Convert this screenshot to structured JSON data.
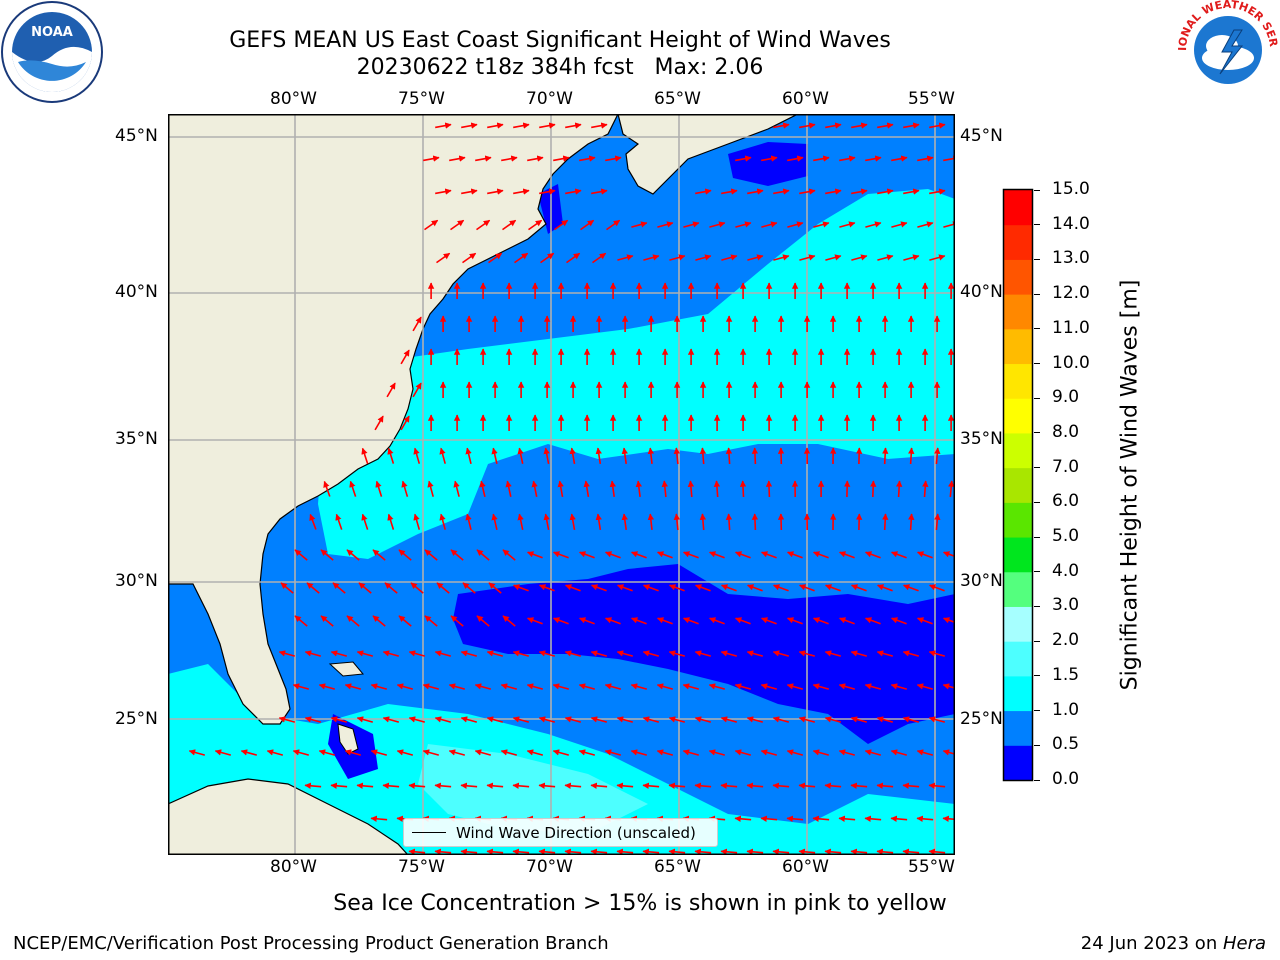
{
  "title": {
    "line1": "GEFS MEAN US East Coast Significant Height of Wind Waves",
    "line2": "20230622 t18z 384h fcst   Max: 2.06"
  },
  "map": {
    "lon_labels": [
      "80°W",
      "75°W",
      "70°W",
      "65°W",
      "60°W",
      "55°W"
    ],
    "lat_labels": [
      "45°N",
      "40°N",
      "35°N",
      "30°N",
      "25°N"
    ],
    "legend_label": "Wind Wave Direction (unscaled)",
    "colors": {
      "land": "#efeedd",
      "arrow": "#ff0000",
      "grid": "#b0b0b0"
    }
  },
  "colorbar": {
    "label": "Significant Height of Wind Waves [m]",
    "ticks": [
      "0.0",
      "0.5",
      "1.0",
      "1.5",
      "2.0",
      "3.0",
      "4.0",
      "5.0",
      "6.0",
      "7.0",
      "8.0",
      "9.0",
      "10.0",
      "11.0",
      "12.0",
      "13.0",
      "14.0",
      "15.0"
    ],
    "colors": [
      "#0000ff",
      "#0080ff",
      "#00ffff",
      "#4dffff",
      "#a6ffff",
      "#54ff7e",
      "#00e61e",
      "#5ae600",
      "#a9e600",
      "#ccff00",
      "#ffff00",
      "#ffe600",
      "#ffbb00",
      "#ff8800",
      "#ff5500",
      "#ff2a00",
      "#ff0000"
    ]
  },
  "note": "Sea Ice Concentration > 15% is shown in pink to yellow",
  "footer": {
    "left": "NCEP/EMC/Verification Post Processing Product Generation Branch",
    "date": "24 Jun 2023 on ",
    "host": "Hera"
  },
  "logos": {
    "noara": "NOAA",
    "nws": "NATIONAL WEATHER SERVICE"
  }
}
